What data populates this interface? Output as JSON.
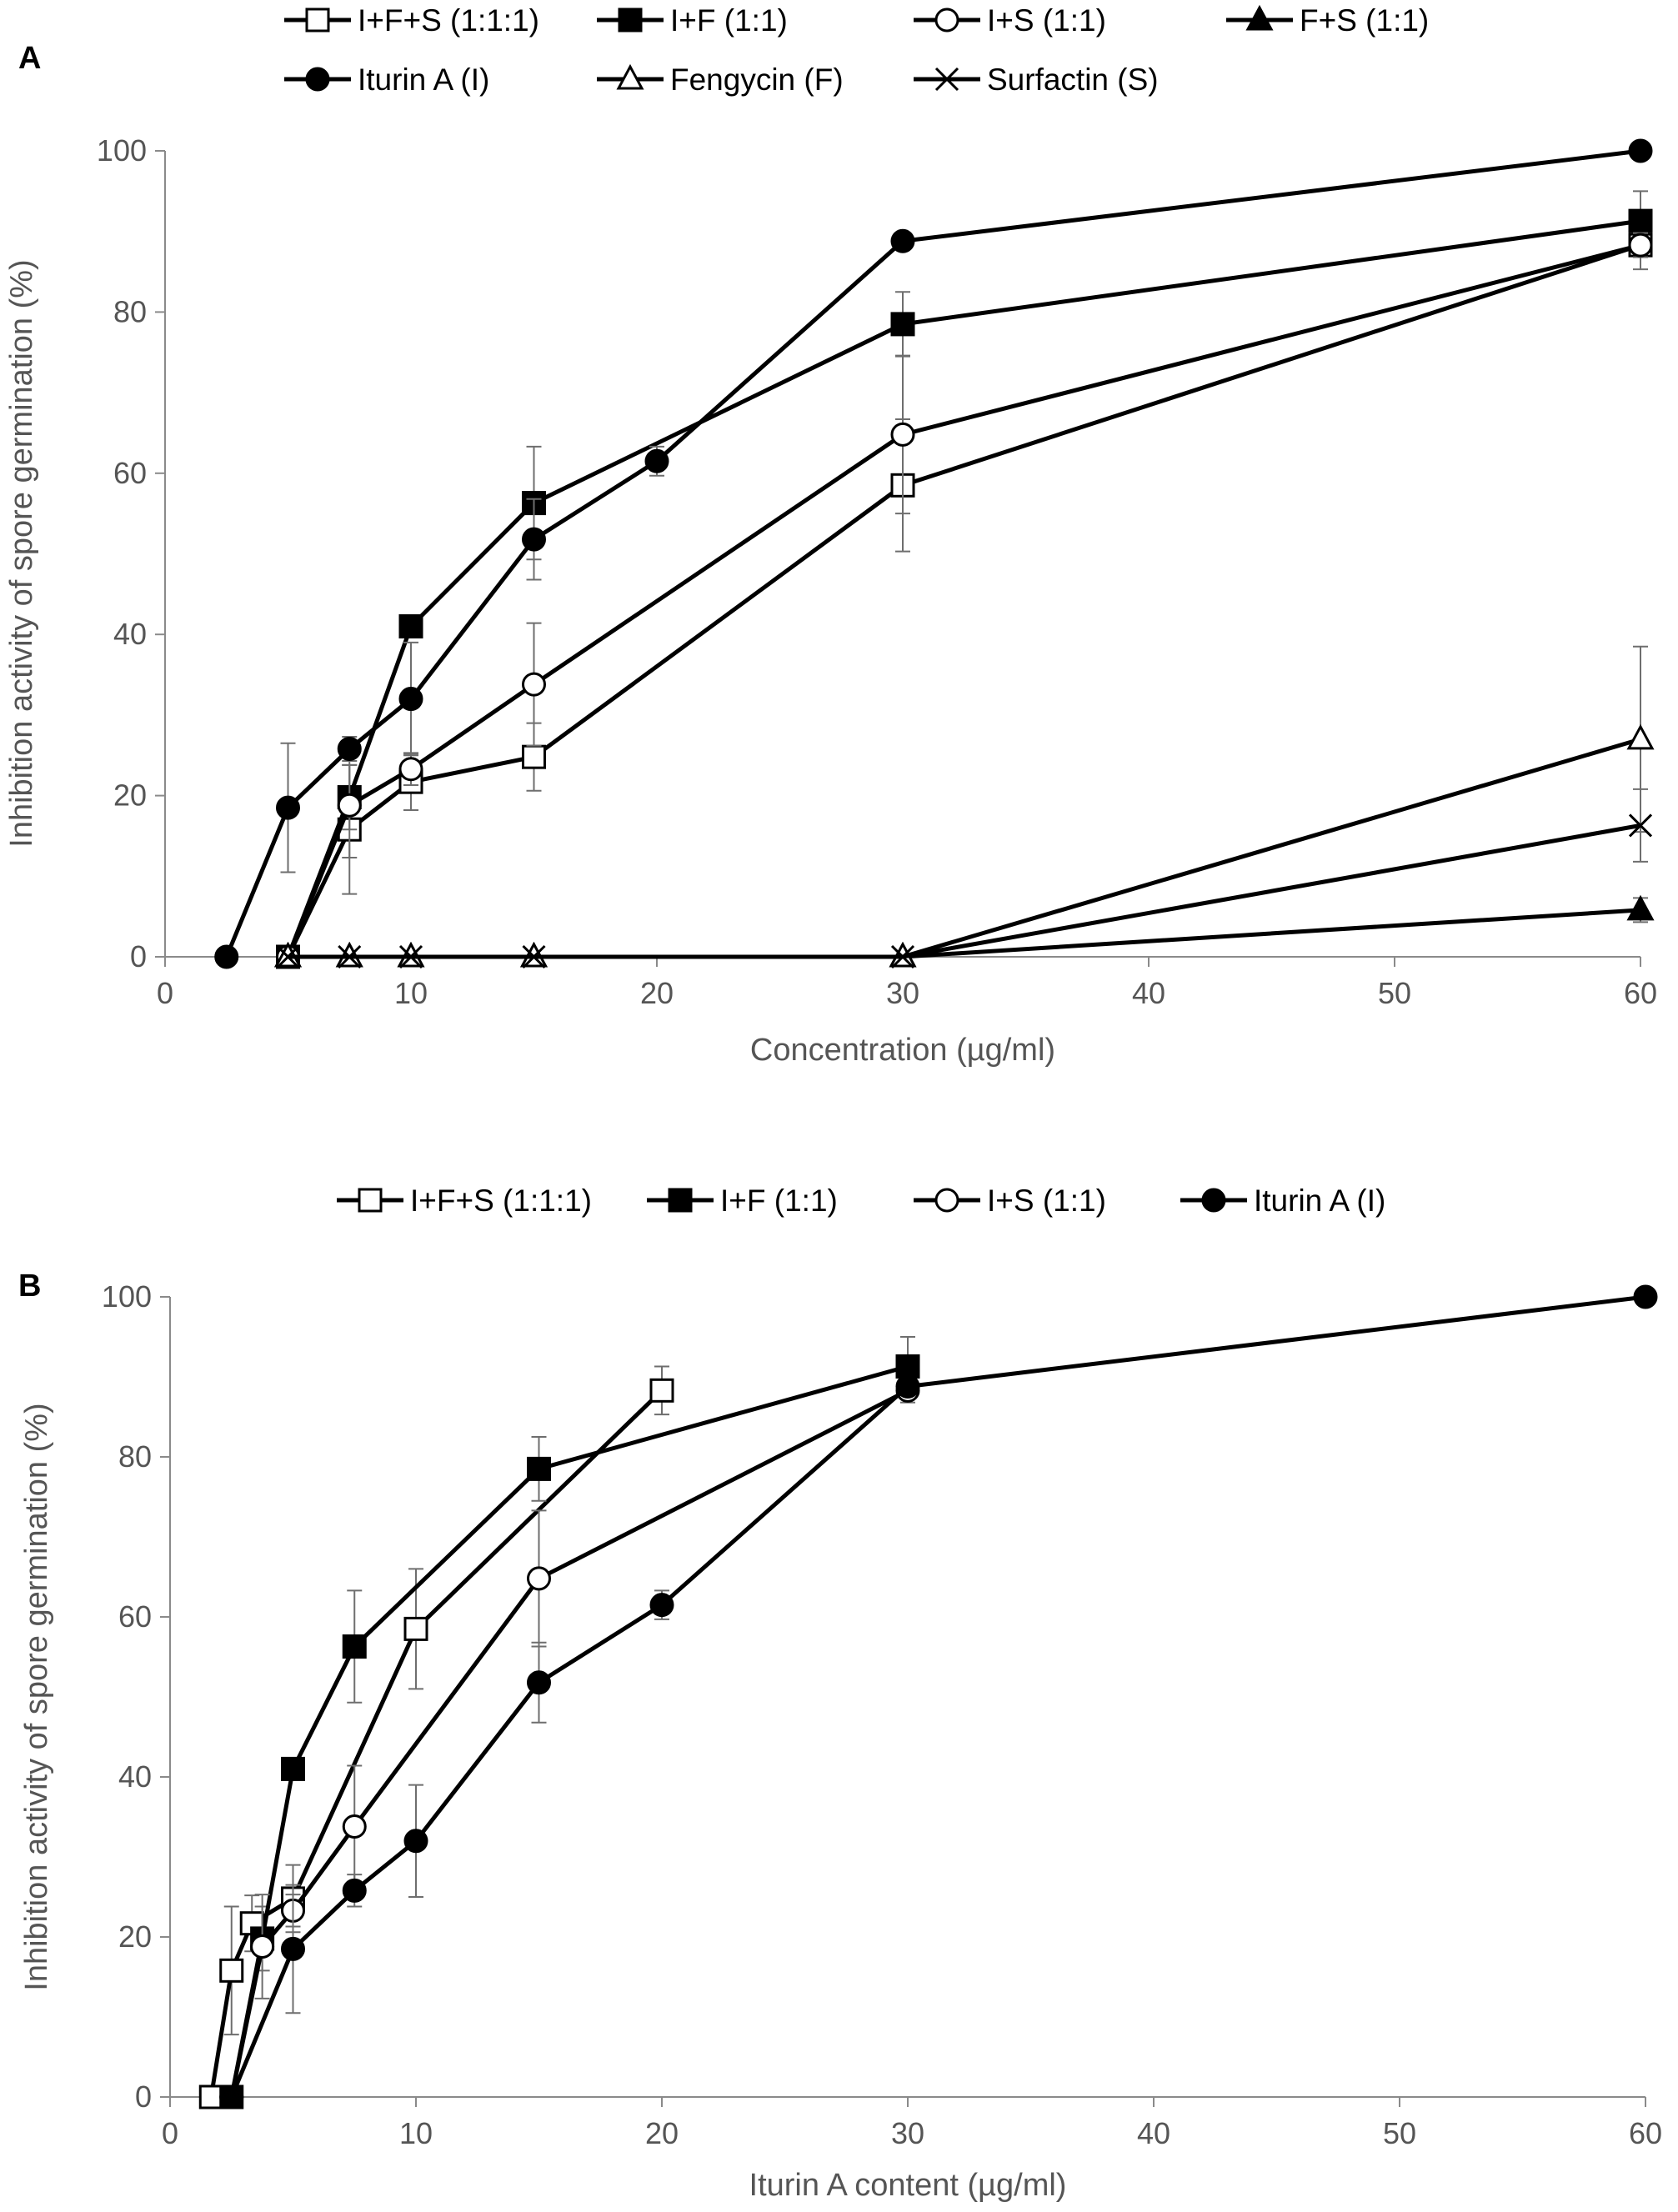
{
  "chart_data": [
    {
      "type": "line",
      "panel": "A",
      "xlabel": "Concentration  (µg/ml)",
      "ylabel": "Inhibition activity of spore germination  (%)",
      "xlim": [
        0,
        60
      ],
      "ylim": [
        0,
        100
      ],
      "x_ticks": [
        0,
        10,
        20,
        30,
        40,
        50,
        60
      ],
      "y_ticks": [
        0,
        20,
        40,
        60,
        80,
        100
      ],
      "x_tick_labels": [
        "0",
        "10",
        "20",
        "30",
        "40",
        "50",
        "60"
      ],
      "y_tick_labels": [
        "0",
        "20",
        "40",
        "60",
        "80",
        "100"
      ],
      "grid": false,
      "legend_rows": [
        [
          0,
          1,
          2,
          3
        ],
        [
          4,
          5,
          6
        ]
      ],
      "series": [
        {
          "name": "I+F+S (1:1:1)",
          "marker": "square-open",
          "x": [
            5,
            7.5,
            10,
            15,
            30,
            60
          ],
          "y": [
            0,
            15.8,
            21.7,
            24.8,
            58.5,
            88.3
          ],
          "err": [
            0,
            8,
            3.5,
            4.2,
            8.2,
            3
          ]
        },
        {
          "name": "I+F (1:1)",
          "marker": "square-filled",
          "x": [
            5,
            7.5,
            10,
            15,
            30,
            60
          ],
          "y": [
            0,
            19.8,
            41,
            56.3,
            78.5,
            91.3
          ],
          "err": [
            0,
            4,
            0,
            7,
            4,
            3.7
          ]
        },
        {
          "name": "I+S (1:1)",
          "marker": "circle-open",
          "x": [
            5,
            7.5,
            10,
            15,
            30,
            60
          ],
          "y": [
            0,
            18.8,
            23.3,
            33.8,
            64.8,
            88.3
          ],
          "err": [
            0,
            6.5,
            2,
            7.6,
            9.8,
            1.5
          ]
        },
        {
          "name": "F+S (1:1)",
          "marker": "triangle-filled",
          "x": [
            5,
            7.5,
            10,
            15,
            30,
            60
          ],
          "y": [
            0,
            0,
            0,
            0,
            0,
            5.8
          ],
          "err": [
            0,
            0,
            0,
            0,
            0,
            1.5
          ]
        },
        {
          "name": "Iturin A (I)",
          "marker": "circle-filled",
          "x": [
            2.5,
            5,
            7.5,
            10,
            15,
            20,
            30,
            60
          ],
          "y": [
            0,
            18.5,
            25.8,
            32,
            51.8,
            61.5,
            88.8,
            100
          ],
          "err": [
            0,
            8,
            1.5,
            7,
            5,
            1.8,
            0,
            0
          ]
        },
        {
          "name": "Fengycin (F)",
          "marker": "triangle-open",
          "x": [
            5,
            7.5,
            10,
            15,
            30,
            60
          ],
          "y": [
            0,
            0,
            0,
            0,
            0,
            27
          ],
          "err": [
            0,
            0,
            0,
            0,
            0,
            11.5
          ]
        },
        {
          "name": "Surfactin (S)",
          "marker": "cross",
          "x": [
            5,
            7.5,
            10,
            15,
            30,
            60
          ],
          "y": [
            0,
            0,
            0,
            0,
            0,
            16.3
          ],
          "err": [
            0,
            0,
            0,
            0,
            0,
            4.5
          ]
        }
      ]
    },
    {
      "type": "line",
      "panel": "B",
      "xlabel": "Iturin A content (µg/ml)",
      "ylabel": "Inhibition activity of spore germination  (%)",
      "xlim": [
        0,
        60
      ],
      "ylim": [
        0,
        100
      ],
      "x_ticks": [
        0,
        10,
        20,
        30,
        40,
        50,
        60
      ],
      "y_ticks": [
        0,
        20,
        40,
        60,
        80,
        100
      ],
      "x_tick_labels": [
        "0",
        "10",
        "20",
        "30",
        "40",
        "50",
        "60"
      ],
      "y_tick_labels": [
        "0",
        "20",
        "40",
        "60",
        "80",
        "100"
      ],
      "grid": false,
      "legend_rows": [
        [
          0,
          1,
          2,
          3
        ]
      ],
      "series": [
        {
          "name": "I+F+S (1:1:1)",
          "marker": "square-open",
          "x": [
            1.67,
            2.5,
            3.33,
            5,
            10,
            20
          ],
          "y": [
            0,
            15.8,
            21.7,
            24.8,
            58.5,
            88.3
          ],
          "err": [
            0,
            8,
            3.5,
            4.2,
            7.5,
            3
          ]
        },
        {
          "name": "I+F (1:1)",
          "marker": "square-filled",
          "x": [
            2.5,
            3.75,
            5,
            7.5,
            15,
            30
          ],
          "y": [
            0,
            19.8,
            41,
            56.3,
            78.5,
            91.3
          ],
          "err": [
            0,
            4,
            0,
            7,
            4,
            3.7
          ]
        },
        {
          "name": "I+S (1:1)",
          "marker": "circle-open",
          "x": [
            2.5,
            3.75,
            5,
            7.5,
            15,
            30
          ],
          "y": [
            0,
            18.8,
            23.3,
            33.8,
            64.8,
            88.3
          ],
          "err": [
            0,
            6.5,
            2,
            7.6,
            8.5,
            1.5
          ]
        },
        {
          "name": "Iturin A (I)",
          "marker": "circle-filled",
          "x": [
            2.5,
            5,
            7.5,
            10,
            15,
            20,
            30,
            60
          ],
          "y": [
            0,
            18.5,
            25.8,
            32,
            51.8,
            61.5,
            88.8,
            100
          ],
          "err": [
            0,
            8,
            2,
            7,
            5,
            1.8,
            0,
            0
          ]
        }
      ]
    }
  ]
}
